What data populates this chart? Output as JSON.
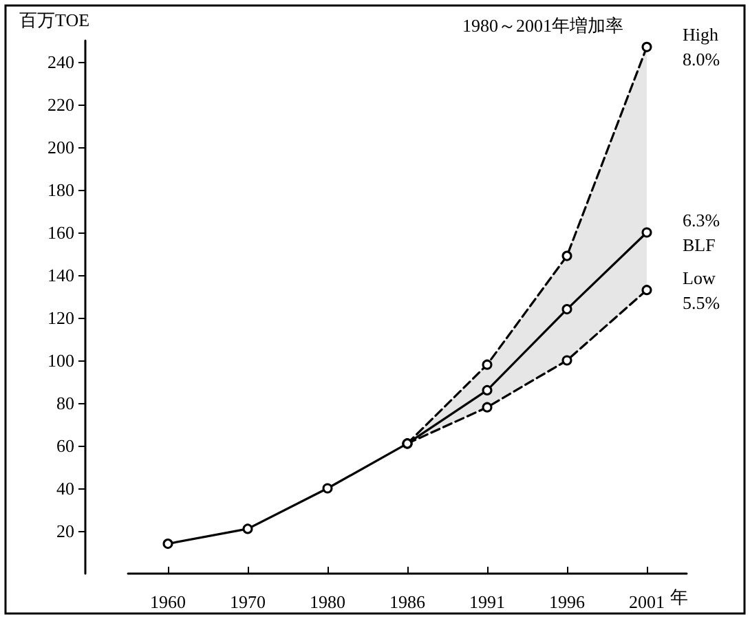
{
  "chart_data": {
    "type": "line",
    "ylabel": "百万TOE",
    "xlabel": "年",
    "categories": [
      "1960",
      "1970",
      "1980",
      "1986",
      "1991",
      "1996",
      "2001"
    ],
    "series": [
      {
        "color": "#000000",
        "values": [
          null,
          null,
          null,
          61,
          98,
          149,
          247
        ],
        "line_style": "dashed"
      },
      {
        "color": "#000000",
        "values": [
          14,
          21,
          40,
          61,
          86,
          124,
          160
        ],
        "lower": [
          null,
          null,
          null,
          61,
          78,
          100,
          133
        ],
        "upper": [
          null,
          null,
          null,
          61,
          98,
          149,
          247
        ]
      },
      {
        "color": "#000000",
        "values": [
          null,
          null,
          null,
          61,
          78,
          100,
          133
        ],
        "line_style": "dashed"
      }
    ],
    "ylim": [
      0,
      250
    ],
    "yticks": [
      20,
      40,
      60,
      80,
      100,
      120,
      140,
      160,
      180,
      200,
      220,
      240
    ],
    "grid": false,
    "marker": "circle",
    "line_style": "solid",
    "annotations": [
      "1980～2001年増加率",
      {
        "text": "High\n8.0%",
        "x": "2001",
        "y": 247
      },
      {
        "text": "6.3%\nBLF",
        "x": "2001",
        "y": 160
      },
      {
        "text": "Low\n5.5%",
        "x": "2001",
        "y": 133
      }
    ]
  }
}
